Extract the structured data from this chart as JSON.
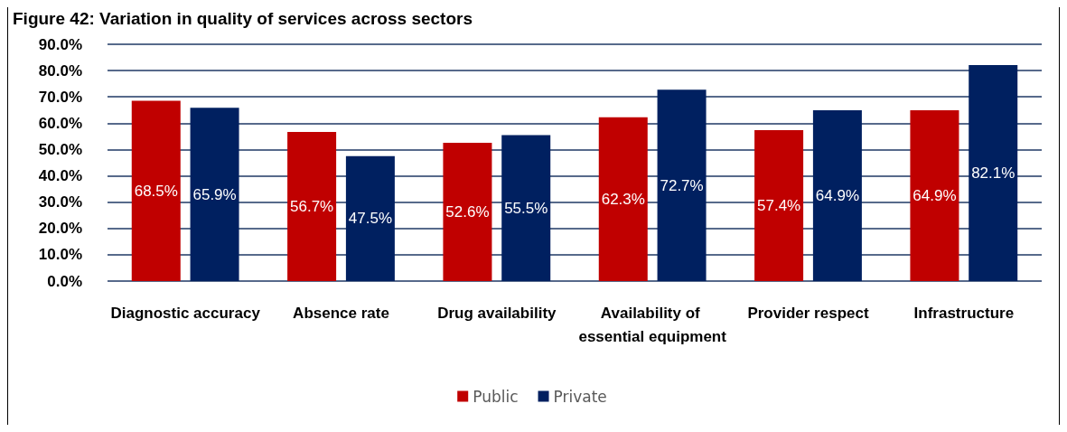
{
  "chart_data": {
    "type": "bar",
    "title": "Figure 42: Variation in quality of services across sectors",
    "categories": [
      "Diagnostic accuracy",
      "Absence rate",
      "Drug availability",
      "Availability of essential equipment",
      "Provider respect",
      "Infrastructure"
    ],
    "series": [
      {
        "name": "Public",
        "color": "#c00000",
        "values": [
          68.5,
          56.7,
          52.6,
          62.3,
          57.4,
          64.9
        ],
        "value_labels": [
          "68.5%",
          "56.7%",
          "52.6%",
          "62.3%",
          "57.4%",
          "64.9%"
        ]
      },
      {
        "name": "Private",
        "color": "#002060",
        "values": [
          65.9,
          47.5,
          55.5,
          72.7,
          64.9,
          82.1
        ],
        "value_labels": [
          "65.9%",
          "47.5%",
          "55.5%",
          "72.7%",
          "64.9%",
          "82.1%"
        ]
      }
    ],
    "ylim": [
      0,
      90
    ],
    "yticks": [
      {
        "value": 0,
        "label": "0.0%"
      },
      {
        "value": 10,
        "label": "10.0%"
      },
      {
        "value": 20,
        "label": "20.0%"
      },
      {
        "value": 30,
        "label": "30.0%"
      },
      {
        "value": 40,
        "label": "40.0%"
      },
      {
        "value": 50,
        "label": "50.0%"
      },
      {
        "value": 60,
        "label": "60.0%"
      },
      {
        "value": 70,
        "label": "70.0%"
      },
      {
        "value": 80,
        "label": "80.0%"
      },
      {
        "value": 90,
        "label": "90.0%"
      }
    ],
    "grid": "y",
    "legend": "bottom"
  }
}
